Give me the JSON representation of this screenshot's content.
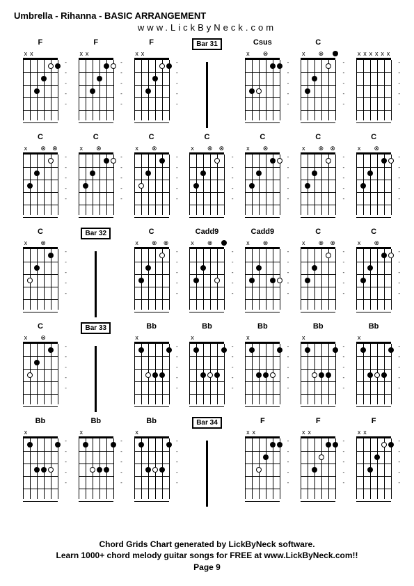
{
  "title": "Umbrella - Rihanna - BASIC ARRANGEMENT",
  "subtitle": "www.LickByNeck.com",
  "footer_line1": "Chord Grids Chart generated by LickByNeck software.",
  "footer_line2": "Learn 1000+ chord melody guitar songs for FREE at www.LickByNeck.com!!",
  "footer_line3": "Page 9",
  "colors": {
    "bg": "#ffffff",
    "fg": "#000000"
  },
  "layout": {
    "cols": 7,
    "rows": 5
  },
  "mute_symbols": {
    "x": "x",
    "o": "⊗",
    "open": "○",
    "none": " "
  },
  "cells": [
    {
      "r": 0,
      "c": 0,
      "type": "chord",
      "name": "F",
      "mutes": [
        "x",
        "x",
        "",
        "",
        "",
        ""
      ],
      "dots": [
        {
          "s": 2,
          "f": 3,
          "o": false
        },
        {
          "s": 3,
          "f": 2,
          "o": false
        },
        {
          "s": 4,
          "f": 1,
          "o": true
        },
        {
          "s": 5,
          "f": 1,
          "o": false
        }
      ]
    },
    {
      "r": 0,
      "c": 1,
      "type": "chord",
      "name": "F",
      "mutes": [
        "x",
        "x",
        "",
        "",
        "",
        ""
      ],
      "dots": [
        {
          "s": 2,
          "f": 3,
          "o": false
        },
        {
          "s": 3,
          "f": 2,
          "o": false
        },
        {
          "s": 4,
          "f": 1,
          "o": false
        },
        {
          "s": 5,
          "f": 1,
          "o": true
        }
      ]
    },
    {
      "r": 0,
      "c": 2,
      "type": "chord",
      "name": "F",
      "mutes": [
        "x",
        "x",
        "",
        "",
        "",
        ""
      ],
      "dots": [
        {
          "s": 2,
          "f": 3,
          "o": false
        },
        {
          "s": 3,
          "f": 2,
          "o": false
        },
        {
          "s": 4,
          "f": 1,
          "o": true
        },
        {
          "s": 5,
          "f": 1,
          "o": false
        }
      ]
    },
    {
      "r": 0,
      "c": 3,
      "type": "bar",
      "label": "Bar 31"
    },
    {
      "r": 0,
      "c": 4,
      "type": "chord",
      "name": "Csus",
      "mutes": [
        "x",
        "",
        "",
        "o",
        "",
        ""
      ],
      "dots": [
        {
          "s": 1,
          "f": 3,
          "o": false
        },
        {
          "s": 2,
          "f": 3,
          "o": true
        },
        {
          "s": 4,
          "f": 1,
          "o": false
        },
        {
          "s": 5,
          "f": 1,
          "o": false
        }
      ]
    },
    {
      "r": 0,
      "c": 5,
      "type": "chord",
      "name": "C",
      "mutes": [
        "x",
        "",
        "",
        "o",
        "",
        ""
      ],
      "dots": [
        {
          "s": 1,
          "f": 3,
          "o": false
        },
        {
          "s": 2,
          "f": 2,
          "o": false
        },
        {
          "s": 4,
          "f": 1,
          "o": true
        },
        {
          "s": 5,
          "f": 0,
          "o": false
        }
      ]
    },
    {
      "r": 0,
      "c": 6,
      "type": "chord",
      "name": "",
      "mutes": [
        "x",
        "x",
        "x",
        "x",
        "x",
        "x"
      ],
      "dots": []
    },
    {
      "r": 1,
      "c": 0,
      "type": "chord",
      "name": "C",
      "mutes": [
        "x",
        "",
        "",
        "o",
        "",
        "o"
      ],
      "dots": [
        {
          "s": 1,
          "f": 3,
          "o": false
        },
        {
          "s": 2,
          "f": 2,
          "o": false
        },
        {
          "s": 4,
          "f": 1,
          "o": true
        }
      ]
    },
    {
      "r": 1,
      "c": 1,
      "type": "chord",
      "name": "C",
      "mutes": [
        "x",
        "",
        "",
        "o",
        "",
        ""
      ],
      "dots": [
        {
          "s": 1,
          "f": 3,
          "o": false
        },
        {
          "s": 2,
          "f": 2,
          "o": false
        },
        {
          "s": 4,
          "f": 1,
          "o": false
        },
        {
          "s": 5,
          "f": 1,
          "o": true
        }
      ]
    },
    {
      "r": 1,
      "c": 2,
      "type": "chord",
      "name": "C",
      "mutes": [
        "x",
        "",
        "",
        "o",
        "",
        ""
      ],
      "dots": [
        {
          "s": 1,
          "f": 3,
          "o": true
        },
        {
          "s": 2,
          "f": 2,
          "o": false
        },
        {
          "s": 4,
          "f": 1,
          "o": false
        }
      ]
    },
    {
      "r": 1,
      "c": 3,
      "type": "chord",
      "name": "C",
      "mutes": [
        "x",
        "",
        "",
        "o",
        "",
        "o"
      ],
      "dots": [
        {
          "s": 1,
          "f": 3,
          "o": false
        },
        {
          "s": 2,
          "f": 2,
          "o": false
        },
        {
          "s": 4,
          "f": 1,
          "o": true
        }
      ]
    },
    {
      "r": 1,
      "c": 4,
      "type": "chord",
      "name": "C",
      "mutes": [
        "x",
        "",
        "",
        "o",
        "",
        ""
      ],
      "dots": [
        {
          "s": 1,
          "f": 3,
          "o": false
        },
        {
          "s": 2,
          "f": 2,
          "o": false
        },
        {
          "s": 4,
          "f": 1,
          "o": false
        },
        {
          "s": 5,
          "f": 1,
          "o": true
        }
      ]
    },
    {
      "r": 1,
      "c": 5,
      "type": "chord",
      "name": "C",
      "mutes": [
        "x",
        "",
        "",
        "o",
        "",
        "o"
      ],
      "dots": [
        {
          "s": 1,
          "f": 3,
          "o": false
        },
        {
          "s": 2,
          "f": 2,
          "o": false
        },
        {
          "s": 4,
          "f": 1,
          "o": true
        }
      ]
    },
    {
      "r": 1,
      "c": 6,
      "type": "chord",
      "name": "C",
      "mutes": [
        "x",
        "",
        "",
        "o",
        "",
        ""
      ],
      "dots": [
        {
          "s": 1,
          "f": 3,
          "o": false
        },
        {
          "s": 2,
          "f": 2,
          "o": false
        },
        {
          "s": 4,
          "f": 1,
          "o": false
        },
        {
          "s": 5,
          "f": 1,
          "o": true
        }
      ]
    },
    {
      "r": 2,
      "c": 0,
      "type": "chord",
      "name": "C",
      "mutes": [
        "x",
        "",
        "",
        "o",
        "",
        ""
      ],
      "dots": [
        {
          "s": 1,
          "f": 3,
          "o": true
        },
        {
          "s": 2,
          "f": 2,
          "o": false
        },
        {
          "s": 4,
          "f": 1,
          "o": false
        }
      ]
    },
    {
      "r": 2,
      "c": 1,
      "type": "bar",
      "label": "Bar 32"
    },
    {
      "r": 2,
      "c": 2,
      "type": "chord",
      "name": "C",
      "mutes": [
        "x",
        "",
        "",
        "o",
        "",
        "o"
      ],
      "dots": [
        {
          "s": 1,
          "f": 3,
          "o": false
        },
        {
          "s": 2,
          "f": 2,
          "o": false
        },
        {
          "s": 4,
          "f": 1,
          "o": true
        }
      ]
    },
    {
      "r": 2,
      "c": 3,
      "type": "chord",
      "name": "Cadd9",
      "mutes": [
        "x",
        "",
        "",
        "o",
        "",
        ""
      ],
      "dots": [
        {
          "s": 1,
          "f": 3,
          "o": false
        },
        {
          "s": 2,
          "f": 2,
          "o": false
        },
        {
          "s": 4,
          "f": 3,
          "o": true
        },
        {
          "s": 5,
          "f": 0,
          "o": false
        }
      ]
    },
    {
      "r": 2,
      "c": 4,
      "type": "chord",
      "name": "Cadd9",
      "mutes": [
        "x",
        "",
        "",
        "o",
        "",
        ""
      ],
      "dots": [
        {
          "s": 1,
          "f": 3,
          "o": false
        },
        {
          "s": 2,
          "f": 2,
          "o": false
        },
        {
          "s": 4,
          "f": 3,
          "o": false
        },
        {
          "s": 5,
          "f": 3,
          "o": true
        }
      ]
    },
    {
      "r": 2,
      "c": 5,
      "type": "chord",
      "name": "C",
      "mutes": [
        "x",
        "",
        "",
        "o",
        "",
        "o"
      ],
      "dots": [
        {
          "s": 1,
          "f": 3,
          "o": false
        },
        {
          "s": 2,
          "f": 2,
          "o": false
        },
        {
          "s": 4,
          "f": 1,
          "o": true
        }
      ]
    },
    {
      "r": 2,
      "c": 6,
      "type": "chord",
      "name": "C",
      "mutes": [
        "x",
        "",
        "",
        "o",
        "",
        ""
      ],
      "dots": [
        {
          "s": 1,
          "f": 3,
          "o": false
        },
        {
          "s": 2,
          "f": 2,
          "o": false
        },
        {
          "s": 4,
          "f": 1,
          "o": false
        },
        {
          "s": 5,
          "f": 1,
          "o": true
        }
      ]
    },
    {
      "r": 3,
      "c": 0,
      "type": "chord",
      "name": "C",
      "mutes": [
        "x",
        "",
        "",
        "o",
        "",
        ""
      ],
      "dots": [
        {
          "s": 1,
          "f": 3,
          "o": true
        },
        {
          "s": 2,
          "f": 2,
          "o": false
        },
        {
          "s": 4,
          "f": 1,
          "o": false
        }
      ]
    },
    {
      "r": 3,
      "c": 1,
      "type": "bar",
      "label": "Bar 33"
    },
    {
      "r": 3,
      "c": 2,
      "type": "chord",
      "name": "Bb",
      "mutes": [
        "x",
        "",
        "",
        "",
        "",
        ""
      ],
      "dots": [
        {
          "s": 1,
          "f": 1,
          "o": false
        },
        {
          "s": 2,
          "f": 3,
          "o": true
        },
        {
          "s": 3,
          "f": 3,
          "o": false
        },
        {
          "s": 4,
          "f": 3,
          "o": false
        },
        {
          "s": 5,
          "f": 1,
          "o": false
        }
      ]
    },
    {
      "r": 3,
      "c": 3,
      "type": "chord",
      "name": "Bb",
      "mutes": [
        "x",
        "",
        "",
        "",
        "",
        ""
      ],
      "dots": [
        {
          "s": 1,
          "f": 1,
          "o": false
        },
        {
          "s": 2,
          "f": 3,
          "o": false
        },
        {
          "s": 3,
          "f": 3,
          "o": true
        },
        {
          "s": 4,
          "f": 3,
          "o": false
        },
        {
          "s": 5,
          "f": 1,
          "o": false
        }
      ]
    },
    {
      "r": 3,
      "c": 4,
      "type": "chord",
      "name": "Bb",
      "mutes": [
        "x",
        "",
        "",
        "",
        "",
        ""
      ],
      "dots": [
        {
          "s": 1,
          "f": 1,
          "o": false
        },
        {
          "s": 2,
          "f": 3,
          "o": false
        },
        {
          "s": 3,
          "f": 3,
          "o": false
        },
        {
          "s": 4,
          "f": 3,
          "o": true
        },
        {
          "s": 5,
          "f": 1,
          "o": false
        }
      ]
    },
    {
      "r": 3,
      "c": 5,
      "type": "chord",
      "name": "Bb",
      "mutes": [
        "x",
        "",
        "",
        "",
        "",
        ""
      ],
      "dots": [
        {
          "s": 1,
          "f": 1,
          "o": false
        },
        {
          "s": 2,
          "f": 3,
          "o": true
        },
        {
          "s": 3,
          "f": 3,
          "o": false
        },
        {
          "s": 4,
          "f": 3,
          "o": false
        },
        {
          "s": 5,
          "f": 1,
          "o": false
        }
      ]
    },
    {
      "r": 3,
      "c": 6,
      "type": "chord",
      "name": "Bb",
      "mutes": [
        "x",
        "",
        "",
        "",
        "",
        ""
      ],
      "dots": [
        {
          "s": 1,
          "f": 1,
          "o": false
        },
        {
          "s": 2,
          "f": 3,
          "o": false
        },
        {
          "s": 3,
          "f": 3,
          "o": true
        },
        {
          "s": 4,
          "f": 3,
          "o": false
        },
        {
          "s": 5,
          "f": 1,
          "o": false
        }
      ]
    },
    {
      "r": 4,
      "c": 0,
      "type": "chord",
      "name": "Bb",
      "mutes": [
        "x",
        "",
        "",
        "",
        "",
        ""
      ],
      "dots": [
        {
          "s": 1,
          "f": 1,
          "o": false
        },
        {
          "s": 2,
          "f": 3,
          "o": false
        },
        {
          "s": 3,
          "f": 3,
          "o": false
        },
        {
          "s": 4,
          "f": 3,
          "o": true
        },
        {
          "s": 5,
          "f": 1,
          "o": false
        }
      ]
    },
    {
      "r": 4,
      "c": 1,
      "type": "chord",
      "name": "Bb",
      "mutes": [
        "x",
        "",
        "",
        "",
        "",
        ""
      ],
      "dots": [
        {
          "s": 1,
          "f": 1,
          "o": false
        },
        {
          "s": 2,
          "f": 3,
          "o": true
        },
        {
          "s": 3,
          "f": 3,
          "o": false
        },
        {
          "s": 4,
          "f": 3,
          "o": false
        },
        {
          "s": 5,
          "f": 1,
          "o": false
        }
      ]
    },
    {
      "r": 4,
      "c": 2,
      "type": "chord",
      "name": "Bb",
      "mutes": [
        "x",
        "",
        "",
        "",
        "",
        ""
      ],
      "dots": [
        {
          "s": 1,
          "f": 1,
          "o": false
        },
        {
          "s": 2,
          "f": 3,
          "o": false
        },
        {
          "s": 3,
          "f": 3,
          "o": true
        },
        {
          "s": 4,
          "f": 3,
          "o": false
        },
        {
          "s": 5,
          "f": 1,
          "o": false
        }
      ]
    },
    {
      "r": 4,
      "c": 3,
      "type": "bar",
      "label": "Bar 34"
    },
    {
      "r": 4,
      "c": 4,
      "type": "chord",
      "name": "F",
      "mutes": [
        "x",
        "x",
        "",
        "",
        "",
        ""
      ],
      "dots": [
        {
          "s": 2,
          "f": 3,
          "o": true
        },
        {
          "s": 3,
          "f": 2,
          "o": false
        },
        {
          "s": 4,
          "f": 1,
          "o": false
        },
        {
          "s": 5,
          "f": 1,
          "o": false
        }
      ]
    },
    {
      "r": 4,
      "c": 5,
      "type": "chord",
      "name": "F",
      "mutes": [
        "x",
        "x",
        "",
        "",
        "",
        ""
      ],
      "dots": [
        {
          "s": 2,
          "f": 3,
          "o": false
        },
        {
          "s": 3,
          "f": 2,
          "o": true
        },
        {
          "s": 4,
          "f": 1,
          "o": false
        },
        {
          "s": 5,
          "f": 1,
          "o": false
        }
      ]
    },
    {
      "r": 4,
      "c": 6,
      "type": "chord",
      "name": "F",
      "mutes": [
        "x",
        "x",
        "",
        "",
        "",
        ""
      ],
      "dots": [
        {
          "s": 2,
          "f": 3,
          "o": false
        },
        {
          "s": 3,
          "f": 2,
          "o": false
        },
        {
          "s": 4,
          "f": 1,
          "o": true
        },
        {
          "s": 5,
          "f": 1,
          "o": false
        }
      ]
    }
  ]
}
